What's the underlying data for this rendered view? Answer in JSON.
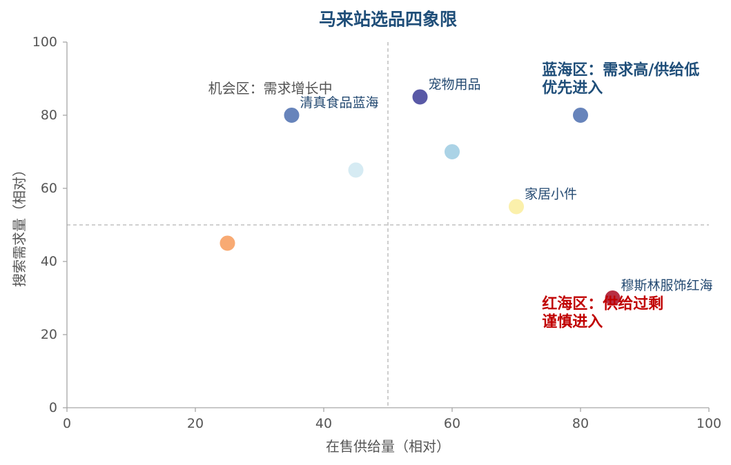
{
  "chart_data": {
    "type": "scatter",
    "title": "马来站选品四象限",
    "xlabel": "在售供给量（相对）",
    "ylabel": "搜索需求量（相对）",
    "xlim": [
      0,
      100
    ],
    "ylim": [
      0,
      100
    ],
    "xticks": [
      0,
      20,
      40,
      60,
      80,
      100
    ],
    "yticks": [
      0,
      20,
      40,
      60,
      80,
      100
    ],
    "grid": false,
    "legend": "none",
    "reference_lines": {
      "x": 50,
      "y": 50,
      "style": "dashed"
    },
    "points": [
      {
        "x": 35,
        "y": 80,
        "label": "清真食品蓝海",
        "color": "#5a7ab5"
      },
      {
        "x": 45,
        "y": 65,
        "color": "#d2e9f2"
      },
      {
        "x": 55,
        "y": 85,
        "label": "宠物用品",
        "color": "#4b4b9e"
      },
      {
        "x": 60,
        "y": 70,
        "color": "#a4cfe4"
      },
      {
        "x": 80,
        "y": 80,
        "color": "#5a7ab5"
      },
      {
        "x": 70,
        "y": 55,
        "label": "家居小件",
        "color": "#fbefa4"
      },
      {
        "x": 25,
        "y": 45,
        "color": "#f7a367"
      },
      {
        "x": 85,
        "y": 30,
        "label": "穆斯林服饰红海",
        "color": "#b11c32"
      }
    ],
    "annotations": [
      {
        "lines": [
          "机会区：需求增长中"
        ],
        "color": "#555555"
      },
      {
        "lines": [
          "蓝海区：需求高/供给低",
          "优先进入"
        ],
        "color": "#1f4e79"
      },
      {
        "lines": [
          "红海区：供给过剩",
          "谨慎进入"
        ],
        "color": "#c00000"
      }
    ]
  },
  "colors": {
    "title": "#1f4e79",
    "axis_text": "#555555",
    "spine": "#a6a6a6",
    "reference_line": "#b3b3b3",
    "point_label": "#244a72"
  }
}
